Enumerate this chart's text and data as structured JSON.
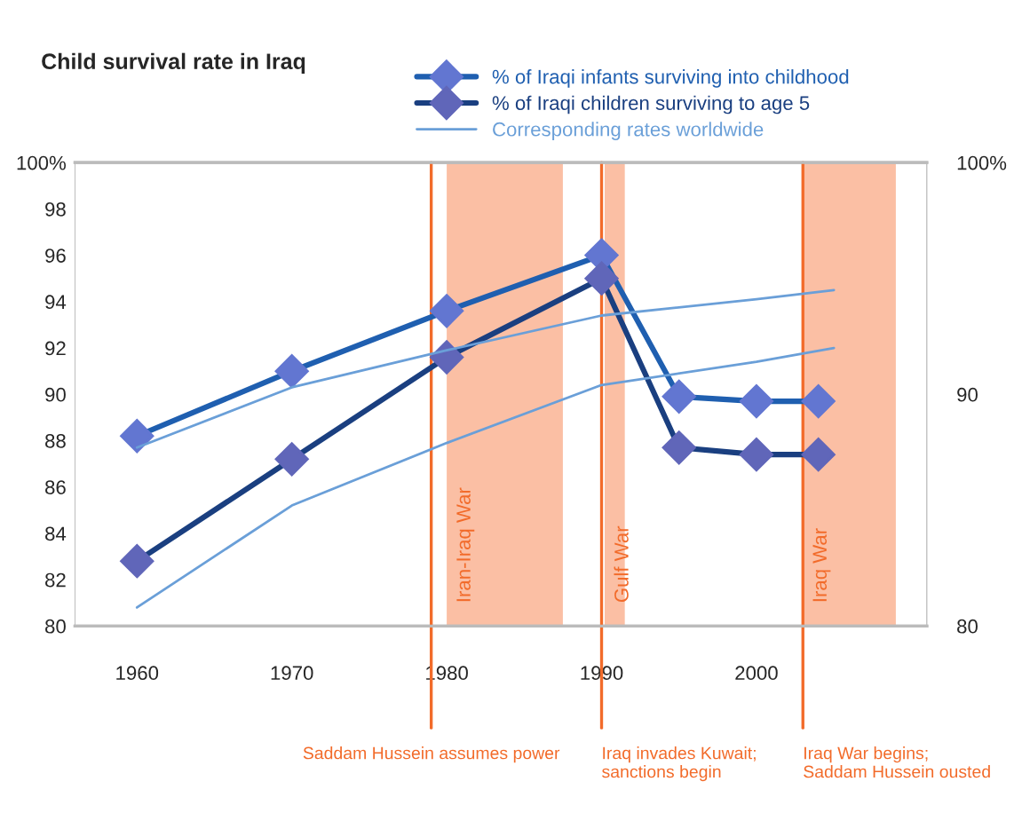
{
  "chart_data": {
    "type": "line",
    "title": "Child survival rate in Iraq",
    "series": [
      {
        "name": "% of Iraqi infants surviving into childhood",
        "color": "#1f5fb0",
        "marker": "diamond",
        "x": [
          1960,
          1970,
          1980,
          1990,
          1995,
          2000,
          2004
        ],
        "values": [
          88.2,
          91.0,
          93.6,
          96.0,
          89.9,
          89.7,
          89.7
        ]
      },
      {
        "name": "% of Iraqi children surviving to age 5",
        "color": "#1a3f80",
        "marker": "diamond",
        "x": [
          1960,
          1970,
          1980,
          1990,
          1995,
          2000,
          2004
        ],
        "values": [
          82.8,
          87.2,
          91.6,
          95.0,
          87.7,
          87.4,
          87.4
        ]
      },
      {
        "name": "Corresponding rates worldwide",
        "color": "#6a9fd8",
        "marker": "none",
        "x": [
          1960,
          1970,
          1980,
          1990,
          2000,
          2005
        ],
        "values": [
          87.7,
          90.3,
          91.9,
          93.4,
          94.1,
          94.5
        ]
      },
      {
        "color": "#6a9fd8",
        "marker": "none",
        "x": [
          1960,
          1970,
          1980,
          1990,
          2000,
          2005
        ],
        "values": [
          80.8,
          85.2,
          87.9,
          90.4,
          91.4,
          92.0
        ]
      }
    ],
    "xlim": [
      1956,
      2011
    ],
    "xticks": [
      1960,
      1970,
      1980,
      1990,
      2000
    ],
    "ylim": [
      80,
      100
    ],
    "yticks": [
      80,
      82,
      84,
      86,
      88,
      90,
      92,
      94,
      96,
      98,
      {
        "value": 100,
        "label": "100%"
      }
    ],
    "y2lim": [
      80,
      100
    ],
    "y2ticks": [
      80,
      90,
      {
        "value": 100,
        "label": "100%"
      }
    ],
    "bands": [
      {
        "axis": "x",
        "from": 1980,
        "to": 1987.5,
        "label": "Iran-Iraq War",
        "color": "#fbbfa4"
      },
      {
        "axis": "x",
        "from": 1990.2,
        "to": 1991.5,
        "label": "Gulf War",
        "color": "#fbbfa4"
      },
      {
        "axis": "x",
        "from": 2003,
        "to": 2009,
        "label": "Iraq War",
        "color": "#fbbfa4"
      }
    ],
    "ref_lines": [
      {
        "axis": "x",
        "value": 1979,
        "label": "Saddam Hussein assumes power",
        "color": "#f26b2a"
      },
      {
        "axis": "x",
        "value": 1990,
        "label": "Iraq invades Kuwait;\nsanctions begin",
        "color": "#f26b2a"
      },
      {
        "axis": "x",
        "value": 2003,
        "label": "Iraq War begins;\nSaddam Hussein ousted",
        "color": "#f26b2a"
      }
    ],
    "grid": false,
    "legend": "top right"
  }
}
